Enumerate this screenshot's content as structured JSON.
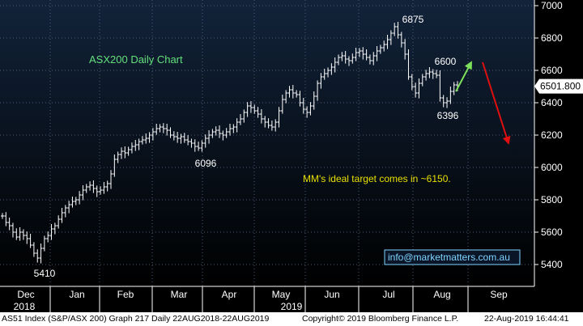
{
  "chart_data": {
    "type": "ohlc",
    "title": "ASX200 Daily Chart",
    "note": "MM's ideal target comes in ~6150.",
    "contact": "info@marketmatters.com.au",
    "last_price_label": "6501.800",
    "ylim": [
      5300,
      7050
    ],
    "y_ticks": [
      5400,
      5600,
      5800,
      6000,
      6200,
      6400,
      6600,
      6800,
      7000
    ],
    "x_months": [
      "Dec",
      "Jan",
      "Feb",
      "Mar",
      "Apr",
      "May",
      "Jun",
      "Jul",
      "Aug",
      "Sep"
    ],
    "x_years": [
      "2018",
      "2019"
    ],
    "annotations": [
      {
        "text": "6875",
        "value": 6875
      },
      {
        "text": "6600",
        "value": 6600
      },
      {
        "text": "6396",
        "value": 6396
      },
      {
        "text": "6096",
        "value": 6096
      },
      {
        "text": "5410",
        "value": 5410
      }
    ],
    "arrows": [
      {
        "color": "#7de05a",
        "from": 6470,
        "to": 6650
      },
      {
        "color": "#e01010",
        "from": 6650,
        "to": 6150
      }
    ],
    "closes": [
      5700,
      5660,
      5640,
      5600,
      5570,
      5600,
      5580,
      5560,
      5520,
      5470,
      5440,
      5500,
      5560,
      5580,
      5620,
      5640,
      5680,
      5720,
      5750,
      5770,
      5790,
      5800,
      5830,
      5860,
      5880,
      5890,
      5870,
      5850,
      5860,
      5880,
      5900,
      5960,
      6050,
      6080,
      6100,
      6090,
      6110,
      6130,
      6140,
      6160,
      6170,
      6180,
      6200,
      6220,
      6240,
      6250,
      6240,
      6230,
      6200,
      6190,
      6180,
      6190,
      6170,
      6160,
      6150,
      6130,
      6120,
      6150,
      6180,
      6200,
      6220,
      6230,
      6210,
      6200,
      6220,
      6240,
      6250,
      6280,
      6300,
      6340,
      6380,
      6370,
      6350,
      6330,
      6300,
      6280,
      6260,
      6250,
      6280,
      6350,
      6420,
      6460,
      6480,
      6460,
      6450,
      6400,
      6360,
      6340,
      6380,
      6440,
      6520,
      6560,
      6580,
      6600,
      6620,
      6650,
      6680,
      6690,
      6670,
      6660,
      6680,
      6710,
      6720,
      6700,
      6680,
      6660,
      6690,
      6720,
      6740,
      6760,
      6790,
      6830,
      6870,
      6820,
      6770,
      6700,
      6560,
      6500,
      6460,
      6520,
      6560,
      6580,
      6590,
      6580,
      6570,
      6430,
      6400,
      6410,
      6470,
      6510,
      6500
    ]
  },
  "footer": {
    "left": "AS51 Index (S&P/ASX 200) Graph 217  Daily 22AUG2018-22AUG2019",
    "middle": "Copyright© 2019 Bloomberg Finance L.P.",
    "right": "22-Aug-2019 16:44:41"
  },
  "colors": {
    "background_top": "#0e1c30",
    "background_bottom": "#000000",
    "bars": "#ffffff",
    "title": "#63e07c",
    "note": "#e8e000",
    "contact": "#7fd4ff",
    "arrow_up": "#7de05a",
    "arrow_down": "#e01010"
  }
}
